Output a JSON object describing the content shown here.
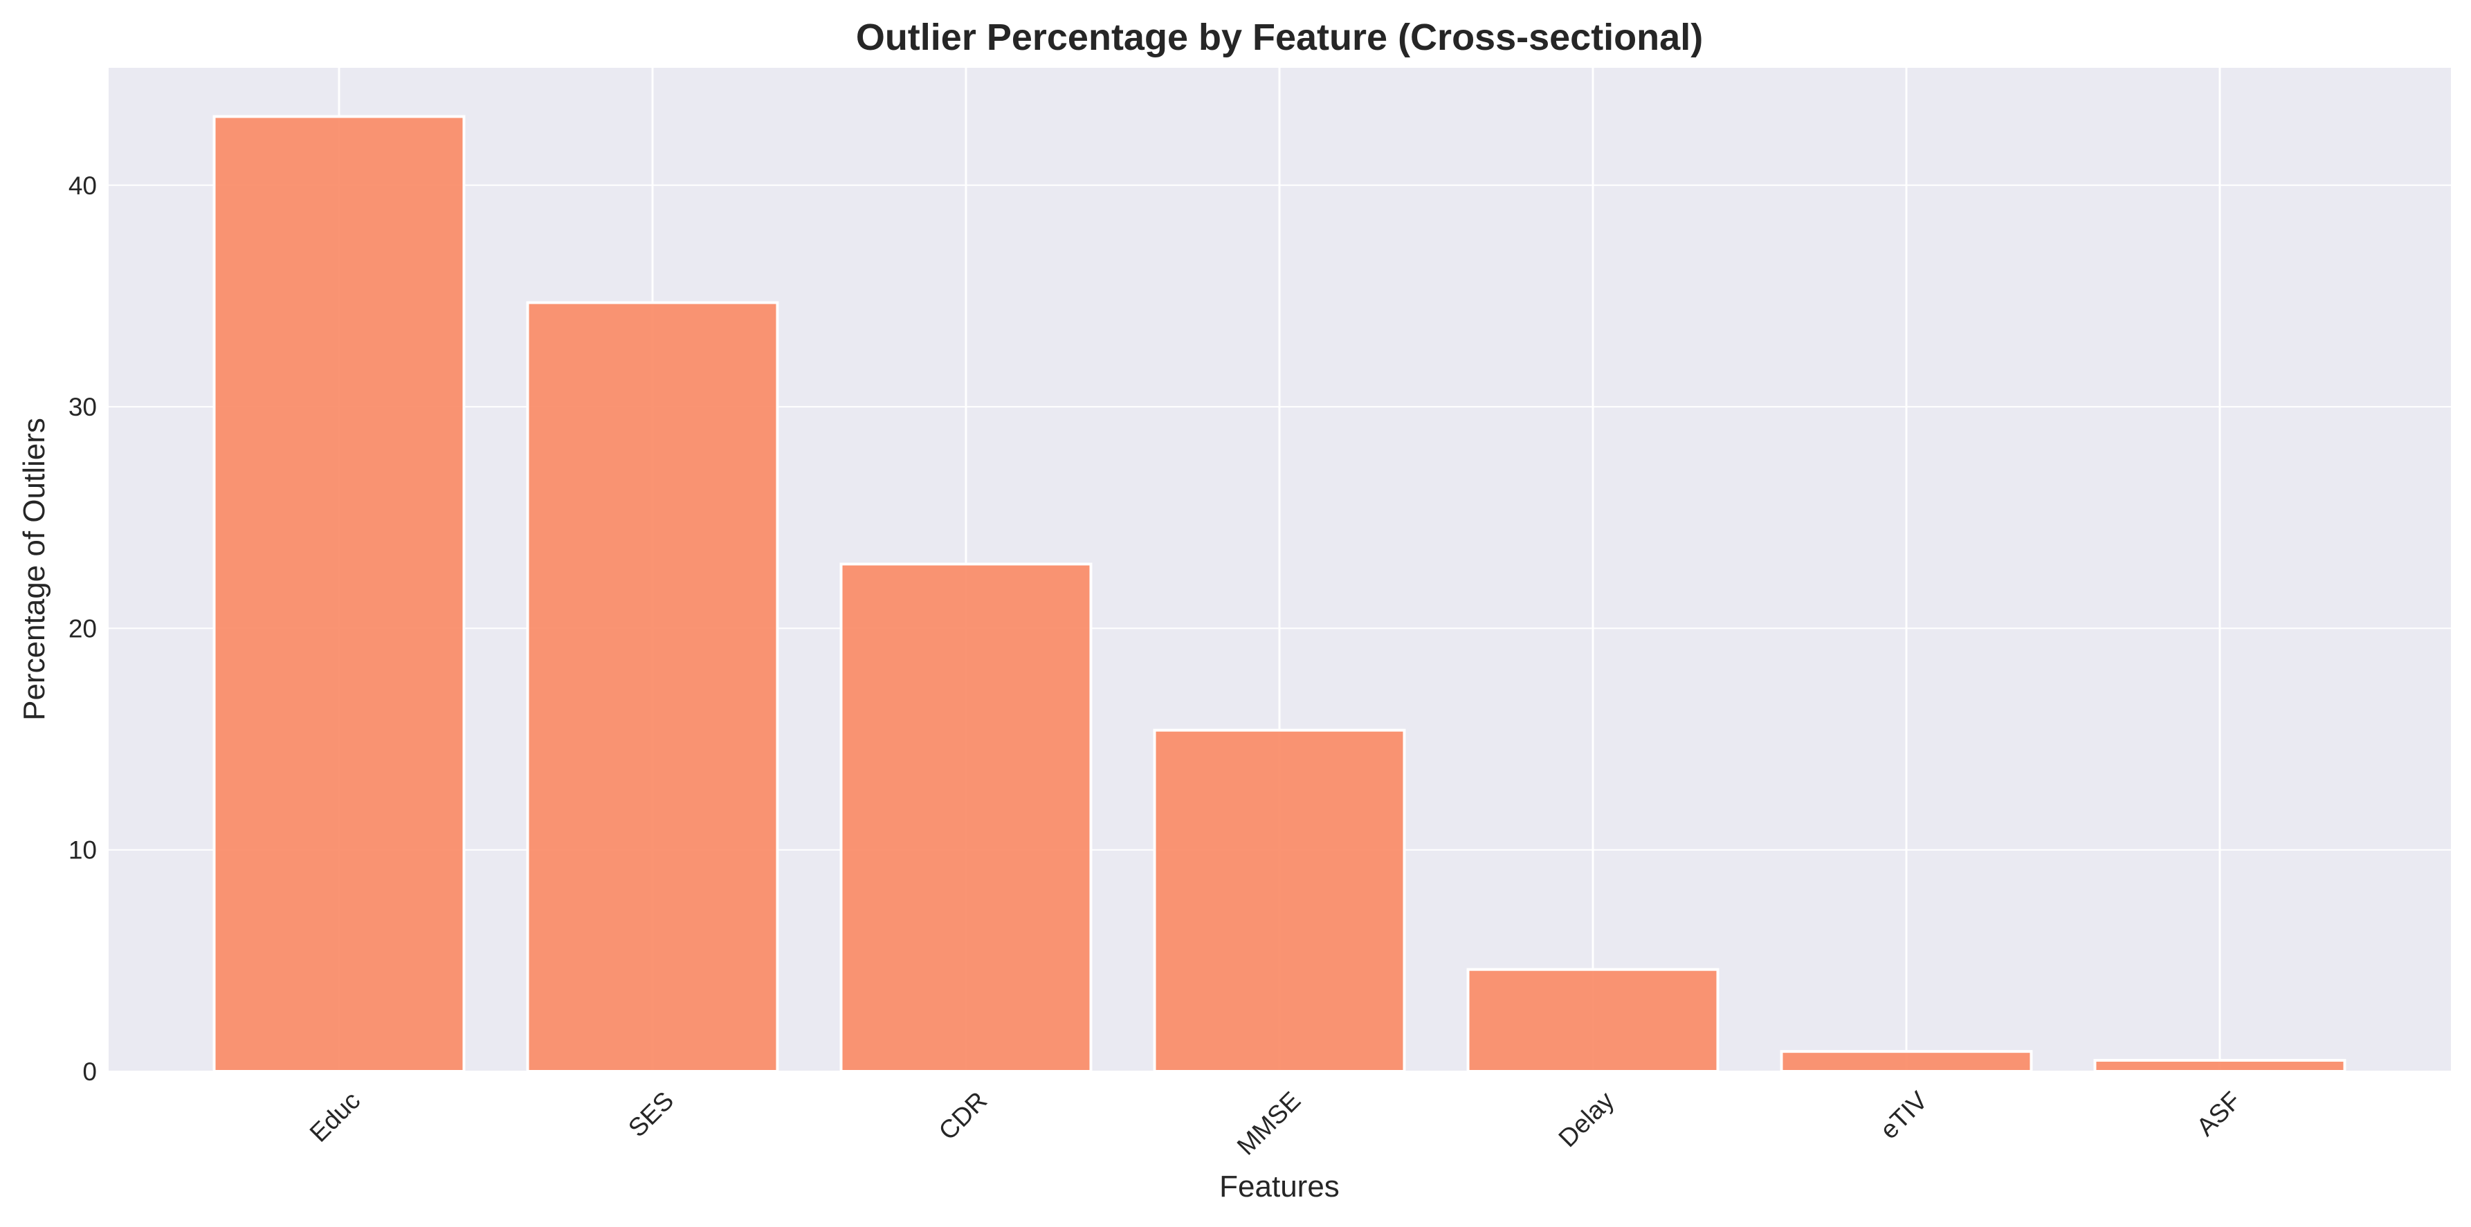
{
  "chart_data": {
    "type": "bar",
    "title": "Outlier Percentage by Feature (Cross-sectional)",
    "xlabel": "Features",
    "ylabel": "Percentage of Outliers",
    "categories": [
      "Educ",
      "SES",
      "CDR",
      "MMSE",
      "Delay",
      "eTIV",
      "ASF"
    ],
    "values": [
      43.1,
      34.7,
      22.9,
      15.4,
      4.6,
      0.9,
      0.5
    ],
    "ylim": [
      0,
      45.3
    ],
    "yticks": [
      0,
      10,
      20,
      30,
      40
    ],
    "grid": true,
    "x_tick_rotation": "45 degrees",
    "colors": {
      "bar": "#fa8c68",
      "bar_edge": "#ffffff",
      "plot_background": "#eaeaf2",
      "grid": "#ffffff",
      "text": "#262626"
    }
  }
}
